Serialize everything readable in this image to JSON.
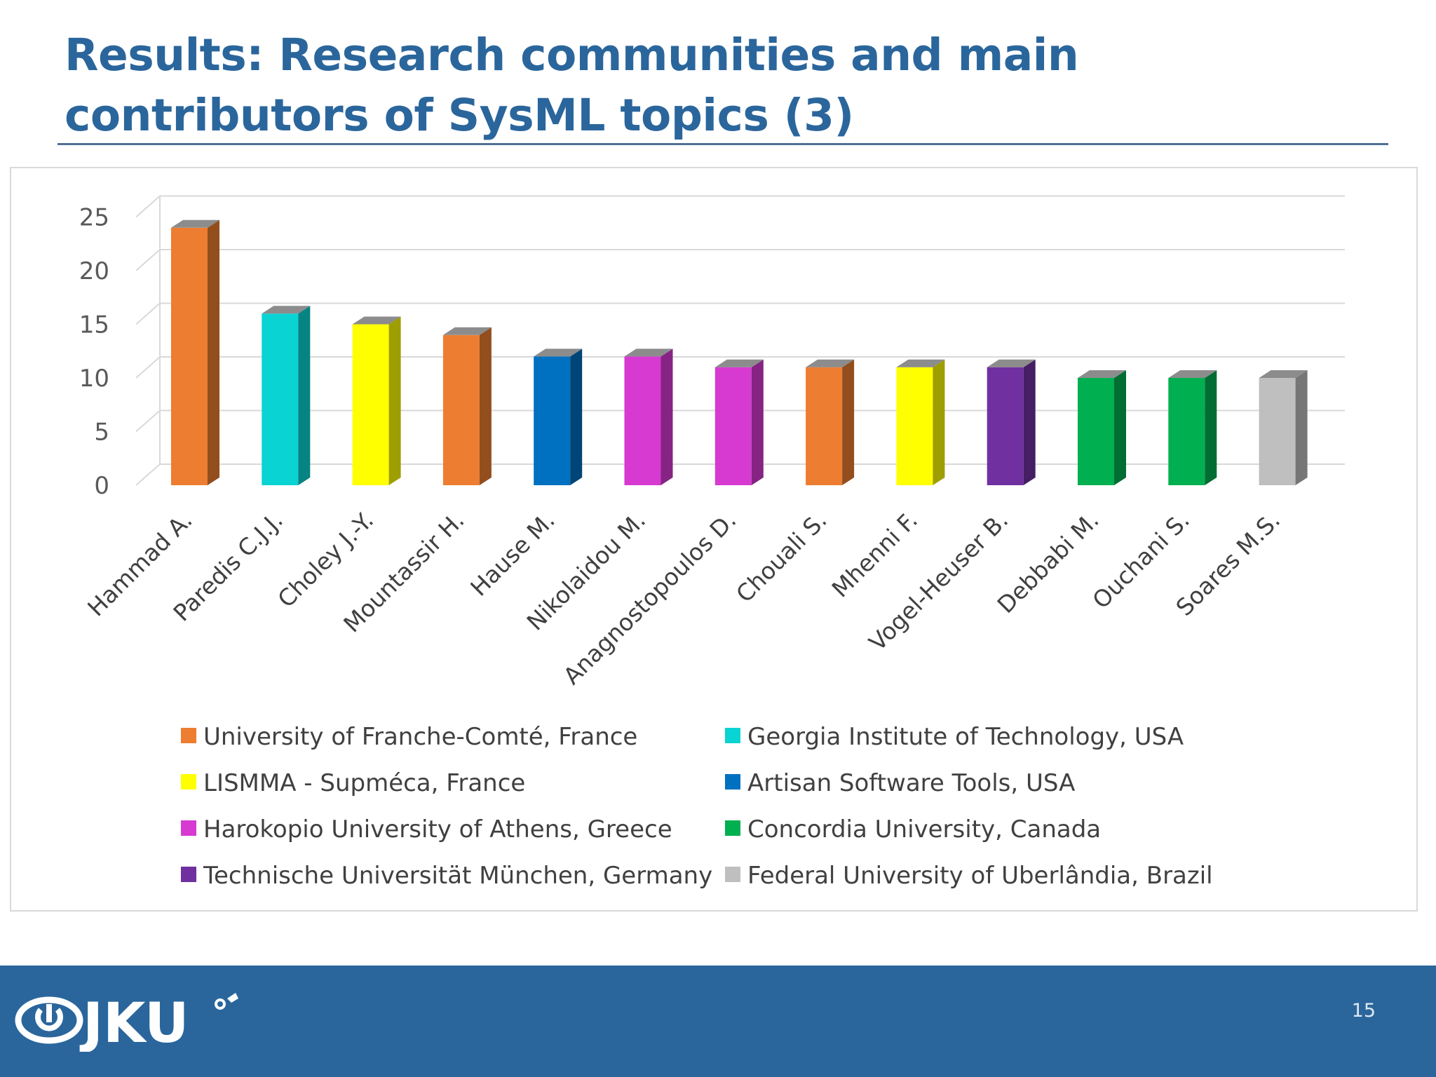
{
  "slide": {
    "title": "Results: Research communities and main contributors of SysML topics (3)",
    "page_number": "15",
    "logo_text": "JKU",
    "logo_icon": "jku-logo-icon"
  },
  "colors": {
    "title": "#2a669c",
    "footer": "#2a669c",
    "University of Franche-Comté, France": "#ed7d31",
    "Georgia Institute of Technology,  USA": "#0ad3d3",
    "LISMMA - Supméca, France": "#ffff00",
    "Artisan Software Tools, USA": "#0070c0",
    "Harokopio University of Athens, Greece": "#d63ad1",
    "Concordia University, Canada": "#00b050",
    "Technische Universität München, Germany": "#7030a0",
    "Federal University of Uberlândia, Brazil": "#bfbfbf"
  },
  "chart_data": {
    "type": "bar",
    "style": "3d",
    "title": "",
    "xlabel": "",
    "ylabel": "",
    "ylim": [
      0,
      25
    ],
    "yticks": [
      "0",
      "5",
      "10",
      "15",
      "20",
      "25"
    ],
    "grid": true,
    "legend_position": "bottom",
    "categories": [
      "Hammad A.",
      "Paredis C.J.J.",
      "Choley J.-Y.",
      "Mountassir H.",
      "Hause M.",
      "Nikolaidou M.",
      "Anagnostopoulos D.",
      "Chouali S.",
      "Mhenni F.",
      "Vogel-Heuser B.",
      "Debbabi M.",
      "Ouchani S.",
      "Soares M.S."
    ],
    "values": [
      24,
      16,
      15,
      14,
      12,
      12,
      11,
      11,
      11,
      11,
      10,
      10,
      10
    ],
    "affiliations": [
      "University of Franche-Comté, France",
      "Georgia Institute of Technology,  USA",
      "LISMMA - Supméca, France",
      "University of Franche-Comté, France",
      "Artisan Software Tools, USA",
      "Harokopio University of Athens, Greece",
      "Harokopio University of Athens, Greece",
      "University of Franche-Comté, France",
      "LISMMA - Supméca, France",
      "Technische Universität München, Germany",
      "Concordia University, Canada",
      "Concordia University, Canada",
      "Federal University of Uberlândia, Brazil"
    ],
    "legend": [
      "University of Franche-Comté, France",
      "Georgia Institute of Technology,  USA",
      "LISMMA - Supméca, France",
      "Artisan Software Tools, USA",
      "Harokopio University of Athens, Greece",
      "Concordia University, Canada",
      "Technische Universität München, Germany",
      "Federal University of Uberlândia, Brazil"
    ]
  }
}
